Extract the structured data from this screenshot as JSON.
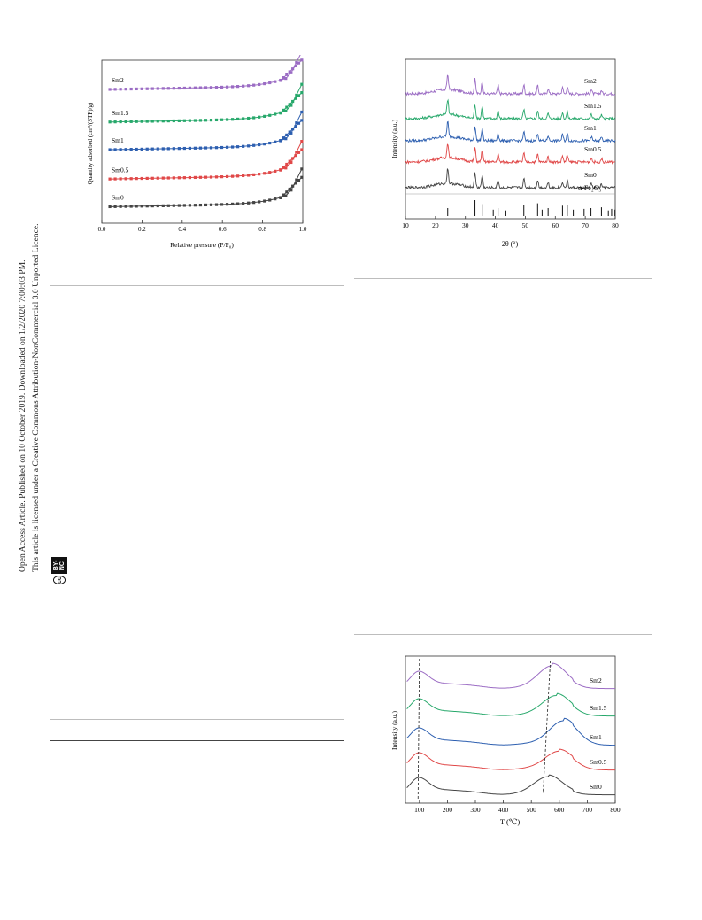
{
  "sidebar": {
    "line1": "Open Access Article. Published on 10 October 2019. Downloaded on 1/2/2020 7:00:03 PM.",
    "line2": "This article is licensed under a Creative Commons Attribution-NonCommercial 3.0 Unported Licence.",
    "badge_cc": "cc",
    "badge_label": "BY-NC"
  },
  "chart_data": [
    {
      "type": "line",
      "xlabel": "Relative pressure (P/P₀)",
      "ylabel": "Quantity adsorbed (cm³/(STP)/g)",
      "xlim": [
        0.0,
        1.0
      ],
      "xticks": [
        "0.0",
        "0.2",
        "0.4",
        "0.6",
        "0.8",
        "1.0"
      ],
      "series": [
        {
          "name": "Sm2",
          "color": "#9b6cc4",
          "offset": 0.82
        },
        {
          "name": "Sm1.5",
          "color": "#27a86b",
          "offset": 0.62
        },
        {
          "name": "Sm1",
          "color": "#2d5fb0",
          "offset": 0.45
        },
        {
          "name": "Sm0.5",
          "color": "#e04848",
          "offset": 0.27
        },
        {
          "name": "Sm0",
          "color": "#444444",
          "offset": 0.1
        }
      ]
    },
    {
      "type": "line",
      "xlabel": "2θ (°)",
      "ylabel": "Intensity (a.u.)",
      "xlim": [
        10,
        80
      ],
      "xticks": [
        "10",
        "20",
        "30",
        "40",
        "50",
        "60",
        "70",
        "80"
      ],
      "reference_label": "α-Fe₂O₃",
      "reference_peaks": [
        24.1,
        33.2,
        35.6,
        39.3,
        40.9,
        43.5,
        49.5,
        54.1,
        55.6,
        57.6,
        62.4,
        64.0,
        66.0,
        69.6,
        71.9,
        75.4,
        77.7,
        78.8,
        79.9
      ],
      "peaks": [
        24.1,
        33.2,
        35.6,
        40.9,
        49.5,
        54.1,
        57.6,
        62.4,
        64.0,
        72.0,
        75.4
      ],
      "series": [
        {
          "name": "Sm2",
          "color": "#9b6cc4"
        },
        {
          "name": "Sm1.5",
          "color": "#27a86b"
        },
        {
          "name": "Sm1",
          "color": "#2d5fb0"
        },
        {
          "name": "Sm0.5",
          "color": "#e04848"
        },
        {
          "name": "Sm0",
          "color": "#444444"
        }
      ]
    },
    {
      "type": "line",
      "xlabel": "T (℃)",
      "ylabel": "Intensity (a.u.)",
      "xlim": [
        50,
        800
      ],
      "xticks": [
        "100",
        "200",
        "300",
        "400",
        "500",
        "600",
        "700",
        "800"
      ],
      "series": [
        {
          "name": "Sm2",
          "color": "#9b6cc4",
          "peak_T": 575
        },
        {
          "name": "Sm1.5",
          "color": "#27a86b",
          "peak_T": 590
        },
        {
          "name": "Sm1",
          "color": "#2d5fb0",
          "peak_T": 615
        },
        {
          "name": "Sm0.5",
          "color": "#e04848",
          "peak_T": 600
        },
        {
          "name": "Sm0",
          "color": "#444444",
          "peak_T": 560
        }
      ]
    }
  ]
}
